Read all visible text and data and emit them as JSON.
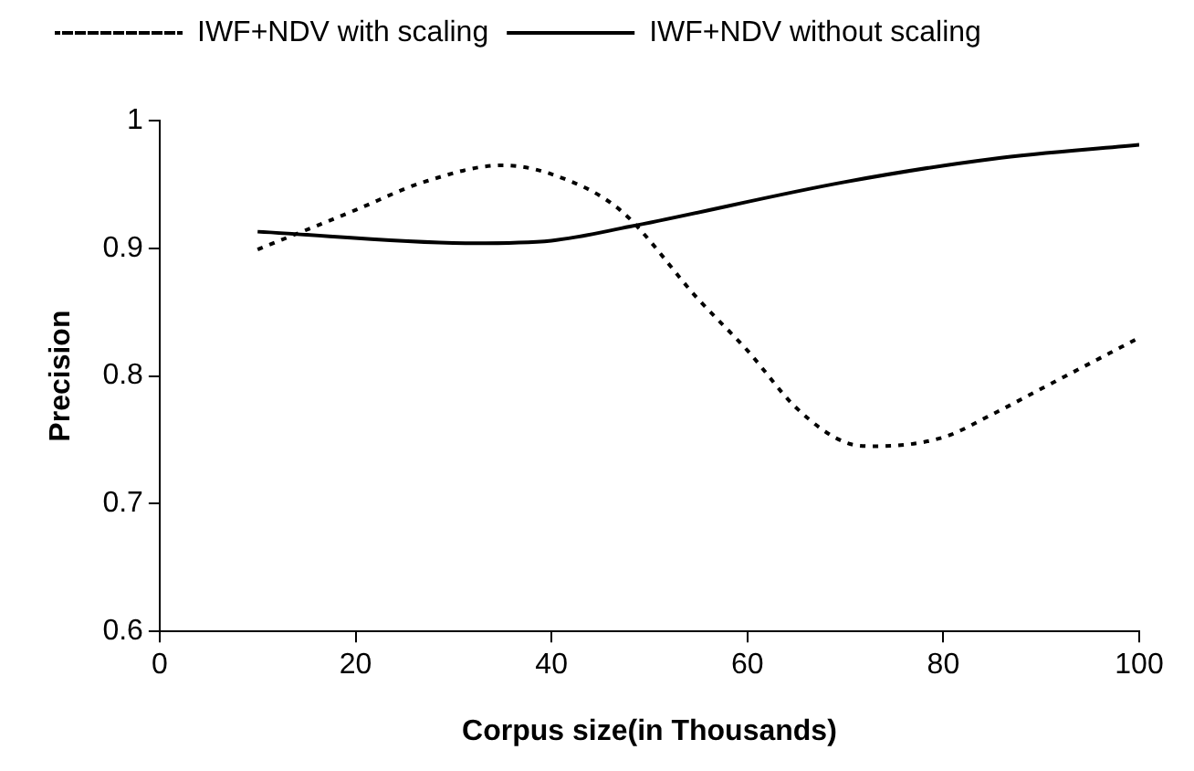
{
  "chart_data": {
    "type": "line",
    "xlabel": "Corpus size(in Thousands)",
    "ylabel": "Precision",
    "xlim": [
      0,
      100
    ],
    "xticks": [
      0,
      20,
      40,
      60,
      80,
      100
    ],
    "ylim": [
      0.6,
      1
    ],
    "yticks": [
      0.6,
      0.7,
      0.8,
      0.9,
      1
    ],
    "grid": false,
    "legend": "top",
    "marker": "none",
    "series": [
      {
        "name": "IWF+NDV with scaling",
        "color": "#000000",
        "line_style": "dotted",
        "x": [
          10,
          20,
          27,
          35,
          40,
          47,
          55,
          60,
          65,
          70,
          73,
          80,
          85,
          90,
          100
        ],
        "values": [
          0.899,
          0.93,
          0.952,
          0.965,
          0.958,
          0.93,
          0.86,
          0.82,
          0.775,
          0.748,
          0.745,
          0.752,
          0.77,
          0.79,
          0.83
        ]
      },
      {
        "name": "IWF+NDV without scaling",
        "color": "#000000",
        "line_style": "solid",
        "x": [
          10,
          32,
          40,
          48,
          70,
          85,
          100
        ],
        "values": [
          0.913,
          0.904,
          0.906,
          0.917,
          0.952,
          0.97,
          0.981
        ]
      }
    ]
  }
}
